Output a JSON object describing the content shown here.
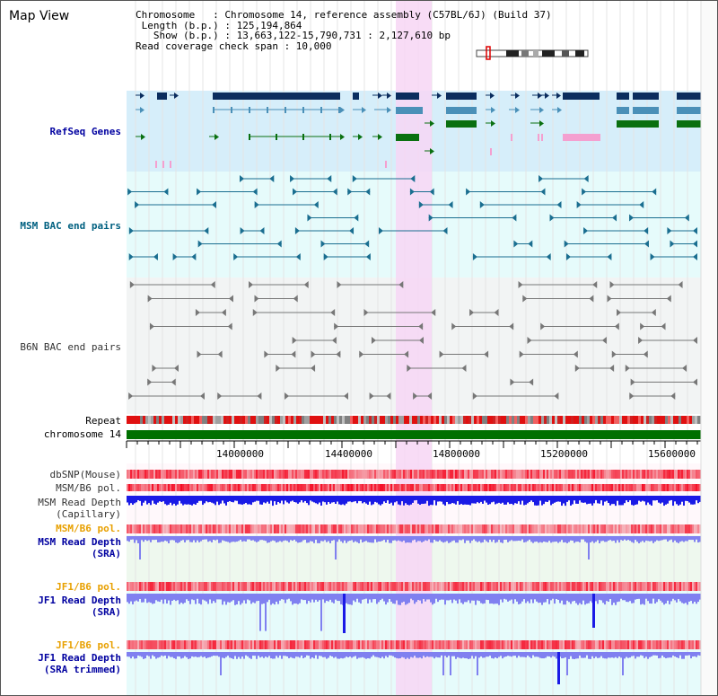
{
  "page_title": "Map View",
  "header": {
    "chromosome_line": "Chromosome   : Chromosome 14, reference assembly (C57BL/6J) (Build 37)",
    "length_line": " Length (b.p.) : 125,194,864",
    "show_line": "   Show (b.p.) : 13,663,122-15,790,731 : 2,127,610 bp",
    "coverage_line": "Read coverage check span : 10,000"
  },
  "tracks": {
    "refseq": "RefSeq Genes",
    "msm_bac": "MSM BAC end pairs",
    "b6n_bac": "B6N BAC end pairs",
    "repeat": "Repeat",
    "chromosome": "chromosome 14",
    "dbsnp": "dbSNP(Mouse)",
    "msm_b6_pol_1": "MSM/B6 pol.",
    "msm_read_depth_cap_1": "MSM Read Depth",
    "msm_read_depth_cap_2": "(Capillary)",
    "msm_b6_pol_2": "MSM/B6 pol.",
    "msm_read_depth_sra_1": "MSM Read Depth",
    "msm_read_depth_sra_2": "(SRA)",
    "jf1_b6_pol_1": "JF1/B6 pol.",
    "jf1_read_depth_sra_1": "JF1 Read Depth",
    "jf1_read_depth_sra_2": "(SRA)",
    "jf1_b6_pol_2": "JF1/B6 pol.",
    "jf1_read_depth_trim_1": "JF1 Read Depth",
    "jf1_read_depth_trim_2": "(SRA trimmed)"
  },
  "axis": {
    "ticks": [
      "14000000",
      "14400000",
      "14800000",
      "15200000",
      "15600000"
    ]
  },
  "colors": {
    "highlight": "#f7d6f4",
    "refseq_bg": "#d6eefa",
    "msm_bg": "#e6fbfb",
    "b6n_bg": "#f2f4f4",
    "gene_dark": "#0b2d5e",
    "gene_light": "#4a90b8",
    "gene_green": "#0a7010",
    "gene_pink": "#f4a0d0",
    "depth_blue": "#1a1ae6",
    "depth_light": "#8080f0",
    "chromosome_green": "#007000"
  }
}
